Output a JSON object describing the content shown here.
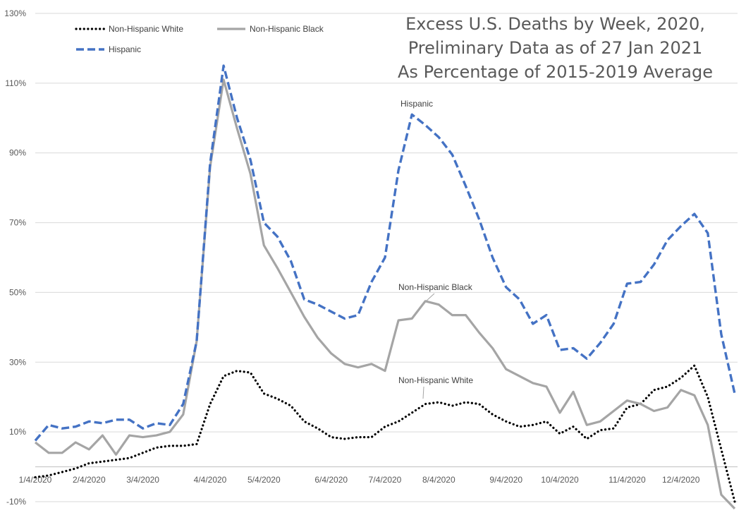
{
  "chart_data": {
    "type": "line",
    "title_lines": [
      "Excess U.S. Deaths by Week, 2020,",
      "Preliminary Data as of 27 Jan 2021",
      "As Percentage of 2015-2019 Average"
    ],
    "xlabel": "",
    "ylabel": "",
    "ylim": [
      -10,
      130
    ],
    "y_ticks": [
      -10,
      10,
      30,
      50,
      70,
      90,
      110,
      130
    ],
    "y_tick_labels": [
      "-10%",
      "10%",
      "30%",
      "50%",
      "70%",
      "90%",
      "110%",
      "130%"
    ],
    "x_tick_labels": [
      "1/4/2020",
      "2/4/2020",
      "3/4/2020",
      "4/4/2020",
      "5/4/2020",
      "6/4/2020",
      "7/4/2020",
      "8/4/2020",
      "9/4/2020",
      "10/4/2020",
      "11/4/2020",
      "12/4/2020"
    ],
    "x": [
      "1/4/2020",
      "1/11/2020",
      "1/18/2020",
      "1/25/2020",
      "2/1/2020",
      "2/8/2020",
      "2/15/2020",
      "2/22/2020",
      "2/29/2020",
      "3/7/2020",
      "3/14/2020",
      "3/21/2020",
      "3/28/2020",
      "4/4/2020",
      "4/11/2020",
      "4/18/2020",
      "4/25/2020",
      "5/2/2020",
      "5/9/2020",
      "5/16/2020",
      "5/23/2020",
      "5/30/2020",
      "6/6/2020",
      "6/13/2020",
      "6/20/2020",
      "6/27/2020",
      "7/4/2020",
      "7/11/2020",
      "7/18/2020",
      "7/25/2020",
      "8/1/2020",
      "8/8/2020",
      "8/15/2020",
      "8/22/2020",
      "8/29/2020",
      "9/5/2020",
      "9/12/2020",
      "9/19/2020",
      "9/26/2020",
      "10/3/2020",
      "10/10/2020",
      "10/17/2020",
      "10/24/2020",
      "10/31/2020",
      "11/7/2020",
      "11/14/2020",
      "11/21/2020",
      "11/28/2020",
      "12/5/2020",
      "12/12/2020",
      "12/19/2020",
      "12/26/2020",
      "1/2/2021"
    ],
    "series": [
      {
        "name": "Non-Hispanic White",
        "color": "#000000",
        "style": "dotted",
        "values": [
          -3,
          -2.5,
          -1.5,
          -0.5,
          1,
          1.5,
          2,
          2.5,
          4,
          5.5,
          6,
          6,
          6.5,
          18,
          26,
          27.5,
          27,
          21,
          19.5,
          17.5,
          13,
          11,
          8.5,
          8,
          8.5,
          8.5,
          11.5,
          13,
          15.5,
          18,
          18.5,
          17.5,
          18.5,
          18,
          15,
          13,
          11.5,
          12,
          13,
          9.5,
          11.5,
          8,
          10.5,
          11,
          17,
          18,
          22,
          23,
          25.5,
          29,
          20,
          5,
          -10
        ]
      },
      {
        "name": "Non-Hispanic Black",
        "color": "#a5a5a5",
        "style": "solid",
        "values": [
          7,
          4,
          4,
          7,
          5,
          9,
          3.5,
          9,
          8.5,
          9,
          10,
          15,
          36,
          86,
          111,
          97,
          84,
          63.5,
          57,
          50,
          43,
          37,
          32.5,
          29.5,
          28.5,
          29.5,
          27.5,
          42,
          42.5,
          47.5,
          46.5,
          43.5,
          43.5,
          38.5,
          34,
          28,
          26,
          24,
          23,
          15.5,
          21.5,
          12,
          13,
          16,
          19,
          18,
          16,
          17,
          22,
          20.5,
          12,
          -8,
          -12
        ]
      },
      {
        "name": "Hispanic",
        "color": "#4472c4",
        "style": "dashed",
        "values": [
          7.5,
          12,
          11,
          11.5,
          13,
          12.5,
          13.5,
          13.5,
          11,
          12.5,
          12,
          18,
          36,
          87,
          115,
          100,
          88,
          70,
          66,
          59,
          48,
          46.5,
          44.5,
          42.5,
          43.5,
          53,
          60,
          85,
          101,
          98,
          94.5,
          89.5,
          80.5,
          71,
          60,
          51.5,
          48,
          41,
          43.5,
          33.5,
          34,
          31,
          35.5,
          41,
          52.5,
          53,
          58,
          65,
          69,
          72.5,
          67,
          38,
          21
        ]
      }
    ],
    "legend": {
      "placement": "top-left",
      "entries": [
        "Non-Hispanic White",
        "Non-Hispanic Black",
        "Hispanic"
      ]
    },
    "annotations": [
      "Hispanic",
      "Non-Hispanic Black",
      "Non-Hispanic White"
    ],
    "grid": "horizontal"
  }
}
